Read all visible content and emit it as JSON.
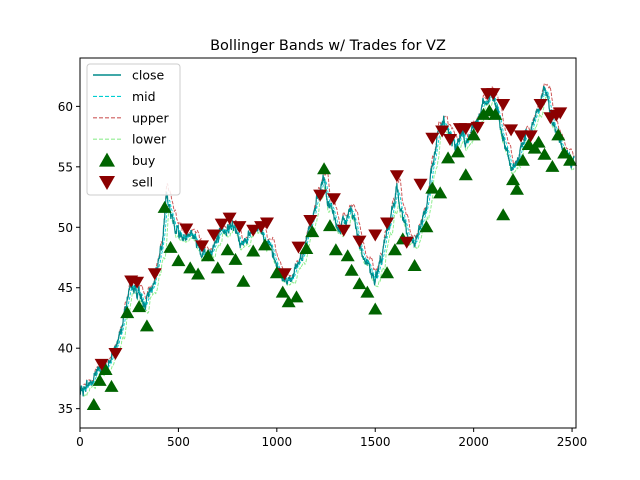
{
  "chart_data": {
    "type": "line",
    "title": "Bollinger Bands w/ Trades for VZ",
    "xlabel": "",
    "ylabel": "",
    "xlim": [
      0,
      2520
    ],
    "ylim": [
      33.4,
      64.0
    ],
    "xticks": [
      0,
      500,
      1000,
      1500,
      2000,
      2500
    ],
    "yticks": [
      35,
      40,
      45,
      50,
      55,
      60
    ],
    "grid": false,
    "legend_position": "upper-left",
    "close_anchors": [
      [
        0,
        36.2
      ],
      [
        30,
        36.8
      ],
      [
        60,
        37.2
      ],
      [
        90,
        38.5
      ],
      [
        120,
        38.0
      ],
      [
        150,
        38.8
      ],
      [
        180,
        40.0
      ],
      [
        210,
        42.0
      ],
      [
        240,
        44.0
      ],
      [
        270,
        45.2
      ],
      [
        300,
        44.5
      ],
      [
        330,
        43.5
      ],
      [
        360,
        44.6
      ],
      [
        390,
        46.5
      ],
      [
        420,
        49.5
      ],
      [
        440,
        52.5
      ],
      [
        460,
        51.0
      ],
      [
        490,
        50.0
      ],
      [
        520,
        49.0
      ],
      [
        560,
        49.8
      ],
      [
        600,
        48.5
      ],
      [
        640,
        47.8
      ],
      [
        680,
        48.5
      ],
      [
        720,
        49.5
      ],
      [
        760,
        50.2
      ],
      [
        800,
        49.5
      ],
      [
        830,
        48.5
      ],
      [
        870,
        49.5
      ],
      [
        910,
        50.0
      ],
      [
        950,
        49.0
      ],
      [
        990,
        47.0
      ],
      [
        1030,
        46.0
      ],
      [
        1060,
        45.5
      ],
      [
        1090,
        46.5
      ],
      [
        1120,
        47.5
      ],
      [
        1150,
        49.0
      ],
      [
        1180,
        50.5
      ],
      [
        1210,
        52.5
      ],
      [
        1240,
        54.0
      ],
      [
        1260,
        52.0
      ],
      [
        1290,
        51.0
      ],
      [
        1320,
        49.5
      ],
      [
        1350,
        50.5
      ],
      [
        1380,
        51.5
      ],
      [
        1410,
        49.5
      ],
      [
        1440,
        47.5
      ],
      [
        1470,
        46.5
      ],
      [
        1500,
        45.5
      ],
      [
        1530,
        47.5
      ],
      [
        1560,
        49.5
      ],
      [
        1590,
        51.5
      ],
      [
        1610,
        53.5
      ],
      [
        1640,
        51.0
      ],
      [
        1670,
        49.0
      ],
      [
        1700,
        48.5
      ],
      [
        1730,
        50.0
      ],
      [
        1760,
        52.0
      ],
      [
        1790,
        55.0
      ],
      [
        1820,
        57.5
      ],
      [
        1850,
        59.0
      ],
      [
        1880,
        57.5
      ],
      [
        1910,
        56.5
      ],
      [
        1940,
        58.0
      ],
      [
        1970,
        57.0
      ],
      [
        2000,
        58.5
      ],
      [
        2030,
        59.5
      ],
      [
        2060,
        60.5
      ],
      [
        2090,
        61.0
      ],
      [
        2120,
        60.0
      ],
      [
        2150,
        57.0
      ],
      [
        2180,
        55.5
      ],
      [
        2210,
        54.5
      ],
      [
        2240,
        56.5
      ],
      [
        2270,
        58.0
      ],
      [
        2300,
        58.5
      ],
      [
        2330,
        60.0
      ],
      [
        2360,
        61.5
      ],
      [
        2390,
        59.5
      ],
      [
        2420,
        58.0
      ],
      [
        2450,
        56.5
      ],
      [
        2480,
        55.8
      ],
      [
        2510,
        55.5
      ]
    ],
    "buy_trades": [
      [
        70,
        35.3
      ],
      [
        100,
        37.3
      ],
      [
        130,
        38.2
      ],
      [
        160,
        36.8
      ],
      [
        240,
        42.9
      ],
      [
        300,
        43.4
      ],
      [
        340,
        41.8
      ],
      [
        430,
        51.6
      ],
      [
        460,
        48.3
      ],
      [
        500,
        47.2
      ],
      [
        560,
        46.6
      ],
      [
        600,
        46.1
      ],
      [
        650,
        47.6
      ],
      [
        700,
        46.6
      ],
      [
        750,
        48.1
      ],
      [
        790,
        47.3
      ],
      [
        830,
        45.5
      ],
      [
        880,
        48.0
      ],
      [
        940,
        48.5
      ],
      [
        1000,
        46.2
      ],
      [
        1030,
        44.6
      ],
      [
        1060,
        43.8
      ],
      [
        1100,
        44.2
      ],
      [
        1150,
        48.2
      ],
      [
        1180,
        49.6
      ],
      [
        1240,
        54.8
      ],
      [
        1270,
        50.1
      ],
      [
        1300,
        48.1
      ],
      [
        1360,
        47.6
      ],
      [
        1380,
        46.4
      ],
      [
        1420,
        45.3
      ],
      [
        1460,
        44.6
      ],
      [
        1500,
        43.2
      ],
      [
        1560,
        46.2
      ],
      [
        1600,
        48.1
      ],
      [
        1640,
        49.0
      ],
      [
        1700,
        46.8
      ],
      [
        1760,
        50.0
      ],
      [
        1790,
        53.2
      ],
      [
        1830,
        52.8
      ],
      [
        1870,
        55.7
      ],
      [
        1920,
        56.2
      ],
      [
        1960,
        54.3
      ],
      [
        2000,
        57.6
      ],
      [
        2050,
        59.3
      ],
      [
        2080,
        59.6
      ],
      [
        2110,
        59.3
      ],
      [
        2150,
        51.0
      ],
      [
        2200,
        53.9
      ],
      [
        2220,
        53.1
      ],
      [
        2250,
        55.5
      ],
      [
        2280,
        56.8
      ],
      [
        2310,
        56.5
      ],
      [
        2330,
        57.0
      ],
      [
        2360,
        56.0
      ],
      [
        2400,
        55.0
      ],
      [
        2430,
        57.6
      ],
      [
        2460,
        56.1
      ],
      [
        2490,
        55.5
      ]
    ],
    "sell_trades": [
      [
        110,
        38.7
      ],
      [
        180,
        39.6
      ],
      [
        260,
        45.6
      ],
      [
        290,
        45.5
      ],
      [
        380,
        46.2
      ],
      [
        540,
        49.9
      ],
      [
        620,
        48.5
      ],
      [
        680,
        49.4
      ],
      [
        720,
        50.3
      ],
      [
        760,
        50.8
      ],
      [
        810,
        50.1
      ],
      [
        880,
        49.8
      ],
      [
        920,
        50.1
      ],
      [
        950,
        50.4
      ],
      [
        1040,
        46.2
      ],
      [
        1110,
        48.4
      ],
      [
        1170,
        50.6
      ],
      [
        1220,
        52.7
      ],
      [
        1290,
        52.4
      ],
      [
        1340,
        49.8
      ],
      [
        1420,
        48.9
      ],
      [
        1500,
        49.4
      ],
      [
        1560,
        50.4
      ],
      [
        1610,
        54.3
      ],
      [
        1660,
        48.8
      ],
      [
        1730,
        53.6
      ],
      [
        1790,
        57.4
      ],
      [
        1840,
        58.0
      ],
      [
        1880,
        57.3
      ],
      [
        1930,
        58.2
      ],
      [
        1960,
        58.2
      ],
      [
        2020,
        58.3
      ],
      [
        2070,
        61.1
      ],
      [
        2100,
        61.1
      ],
      [
        2150,
        60.2
      ],
      [
        2190,
        58.1
      ],
      [
        2240,
        57.6
      ],
      [
        2290,
        57.6
      ],
      [
        2340,
        60.2
      ],
      [
        2390,
        59.1
      ],
      [
        2420,
        59.3
      ],
      [
        2440,
        59.5
      ]
    ],
    "series": [
      {
        "name": "close",
        "color": "#008b8b",
        "style": "solid"
      },
      {
        "name": "mid",
        "color": "#00ced1",
        "style": "dashed"
      },
      {
        "name": "upper",
        "color": "#cd5c5c",
        "style": "dashed"
      },
      {
        "name": "lower",
        "color": "#90ee90",
        "style": "dashed"
      },
      {
        "name": "buy",
        "color": "#006400",
        "marker": "triangle-up"
      },
      {
        "name": "sell",
        "color": "#8b0000",
        "marker": "triangle-down"
      }
    ]
  }
}
